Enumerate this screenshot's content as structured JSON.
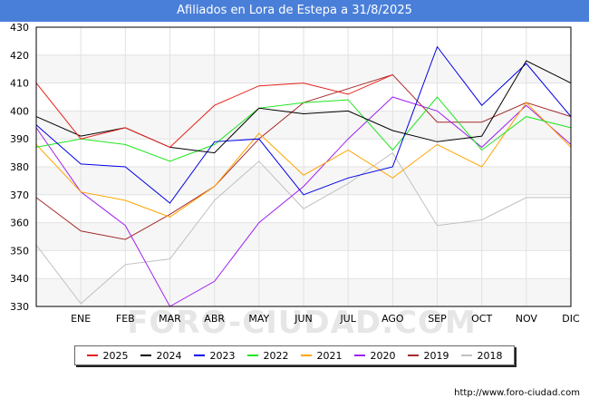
{
  "header": {
    "title": "Afiliados en Lora de Estepa a 31/8/2025"
  },
  "watermark": "FORO-CIUDAD.COM",
  "source": "http://www.foro-ciudad.com",
  "chart_data": {
    "type": "line",
    "title": "Afiliados en Lora de Estepa a 31/8/2025",
    "xlabel": "",
    "ylabel": "",
    "ylim": [
      330,
      430
    ],
    "yticks": [
      330,
      340,
      350,
      360,
      370,
      380,
      390,
      400,
      410,
      420,
      430
    ],
    "categories": [
      "",
      "ENE",
      "FEB",
      "MAR",
      "ABR",
      "MAY",
      "JUN",
      "JUL",
      "AGO",
      "SEP",
      "OCT",
      "NOV",
      "DIC"
    ],
    "legend_position": "bottom",
    "series": [
      {
        "name": "2025",
        "color": "#e8201a",
        "values": [
          410,
          390,
          394,
          387,
          402,
          409,
          410,
          406,
          413,
          null,
          null,
          null,
          null
        ]
      },
      {
        "name": "2024",
        "color": "#000000",
        "values": [
          398,
          391,
          394,
          387,
          385,
          401,
          399,
          400,
          393,
          389,
          391,
          418,
          410
        ]
      },
      {
        "name": "2023",
        "color": "#0000e6",
        "values": [
          395,
          381,
          380,
          367,
          389,
          390,
          370,
          376,
          380,
          423,
          402,
          417,
          398
        ]
      },
      {
        "name": "2022",
        "color": "#1ee61e",
        "values": [
          387,
          390,
          388,
          382,
          388,
          401,
          403,
          404,
          386,
          405,
          386,
          398,
          394
        ]
      },
      {
        "name": "2021",
        "color": "#ffa500",
        "values": [
          388,
          371,
          368,
          362,
          373,
          392,
          377,
          386,
          376,
          388,
          380,
          403,
          387
        ]
      },
      {
        "name": "2020",
        "color": "#a020f0",
        "values": [
          394,
          371,
          359,
          330,
          339,
          360,
          373,
          390,
          405,
          400,
          387,
          402,
          388
        ]
      },
      {
        "name": "2019",
        "color": "#a52a2a",
        "values": [
          369,
          357,
          354,
          363,
          373,
          390,
          403,
          408,
          413,
          396,
          396,
          403,
          398
        ]
      },
      {
        "name": "2018",
        "color": "#c0c0c0",
        "values": [
          352,
          331,
          345,
          347,
          368,
          382,
          365,
          374,
          385,
          359,
          361,
          369,
          369
        ]
      }
    ]
  }
}
